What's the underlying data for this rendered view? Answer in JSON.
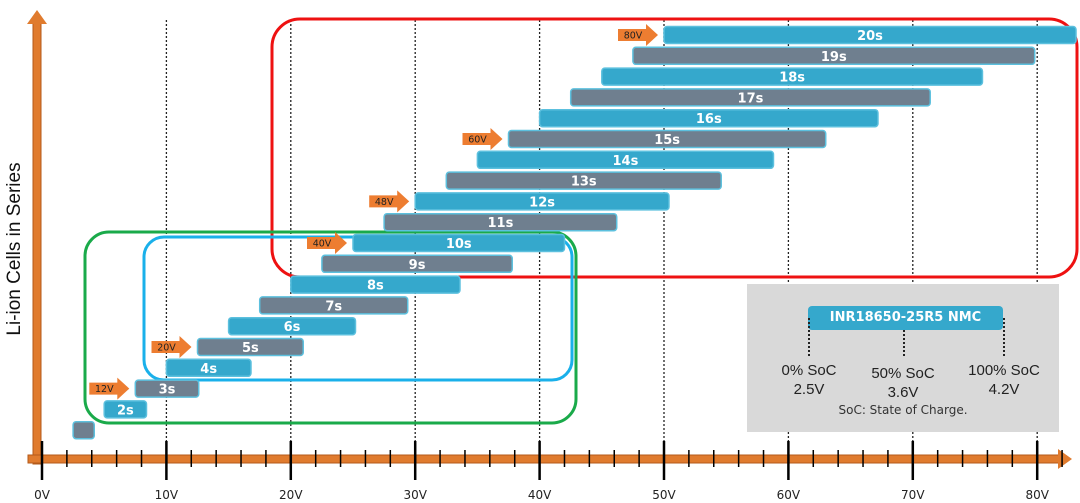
{
  "y_axis_label": "Li-ion Cells in Series",
  "colors": {
    "blue_bar": "#35a8cc",
    "gray_bar": "#6f7f8f",
    "axis": "#e07b2e",
    "arrow": "#ed7d31",
    "red_box": "#ee1111",
    "green_box": "#1aaa4a",
    "blue_box": "#1ab0ea",
    "legend_bg": "#d9d9d9"
  },
  "chart_data": {
    "type": "range-bar",
    "x_unit": "V",
    "xlim": [
      0,
      84
    ],
    "x_ticks": [
      "0V",
      "10V",
      "20V",
      "30V",
      "40V",
      "50V",
      "60V",
      "70V",
      "80V"
    ],
    "cell_min_v": 2.5,
    "cell_max_v": 4.2,
    "bars": [
      {
        "cells": 1,
        "label": "",
        "min": 2.5,
        "max": 4.2
      },
      {
        "cells": 2,
        "label": "2s",
        "min": 5.0,
        "max": 8.4
      },
      {
        "cells": 3,
        "label": "3s",
        "min": 7.5,
        "max": 12.6
      },
      {
        "cells": 4,
        "label": "4s",
        "min": 10.0,
        "max": 16.8
      },
      {
        "cells": 5,
        "label": "5s",
        "min": 12.5,
        "max": 21.0
      },
      {
        "cells": 6,
        "label": "6s",
        "min": 15.0,
        "max": 25.2
      },
      {
        "cells": 7,
        "label": "7s",
        "min": 17.5,
        "max": 29.4
      },
      {
        "cells": 8,
        "label": "8s",
        "min": 20.0,
        "max": 33.6
      },
      {
        "cells": 9,
        "label": "9s",
        "min": 22.5,
        "max": 37.8
      },
      {
        "cells": 10,
        "label": "10s",
        "min": 25.0,
        "max": 42.0
      },
      {
        "cells": 11,
        "label": "11s",
        "min": 27.5,
        "max": 46.2
      },
      {
        "cells": 12,
        "label": "12s",
        "min": 30.0,
        "max": 50.4
      },
      {
        "cells": 13,
        "label": "13s",
        "min": 32.5,
        "max": 54.6
      },
      {
        "cells": 14,
        "label": "14s",
        "min": 35.0,
        "max": 58.8
      },
      {
        "cells": 15,
        "label": "15s",
        "min": 37.5,
        "max": 63.0
      },
      {
        "cells": 16,
        "label": "16s",
        "min": 40.0,
        "max": 67.2
      },
      {
        "cells": 17,
        "label": "17s",
        "min": 42.5,
        "max": 71.4
      },
      {
        "cells": 18,
        "label": "18s",
        "min": 45.0,
        "max": 75.6
      },
      {
        "cells": 19,
        "label": "19s",
        "min": 47.5,
        "max": 79.8
      },
      {
        "cells": 20,
        "label": "20s",
        "min": 50.0,
        "max": 84.0
      }
    ],
    "nominal_markers": [
      {
        "label": "12V",
        "cells": 3
      },
      {
        "label": "20V",
        "cells": 5
      },
      {
        "label": "40V",
        "cells": 10
      },
      {
        "label": "48V",
        "cells": 12
      },
      {
        "label": "60V",
        "cells": 15
      },
      {
        "label": "80V",
        "cells": 20
      }
    ]
  },
  "legend": {
    "cell_name": "INR18650-25R5 NMC",
    "points": [
      {
        "soc": "0% SoC",
        "voltage": "2.5V"
      },
      {
        "soc": "50% SoC",
        "voltage": "3.6V"
      },
      {
        "soc": "100% SoC",
        "voltage": "4.2V"
      }
    ],
    "note": "SoC: State of Charge."
  }
}
